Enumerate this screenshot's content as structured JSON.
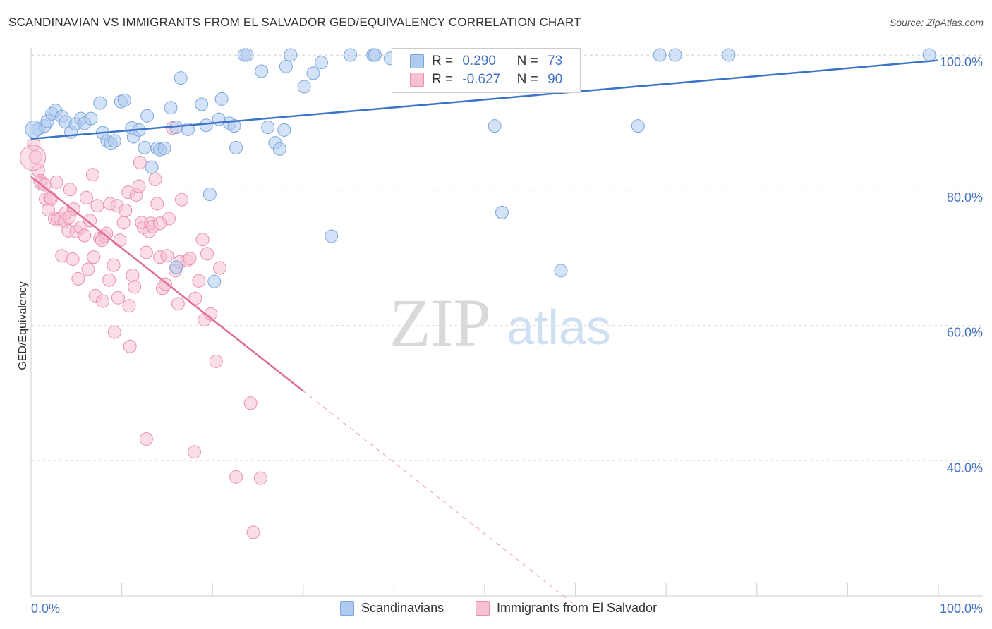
{
  "title": "SCANDINAVIAN VS IMMIGRANTS FROM EL SALVADOR GED/EQUIVALENCY CORRELATION CHART",
  "source": "Source: ZipAtlas.com",
  "watermark": {
    "zip": "ZIP",
    "atlas": "atlas"
  },
  "legend": {
    "rows": [
      {
        "r_label": "R =",
        "r_value": "0.290",
        "n_label": "N =",
        "n_value": "73"
      },
      {
        "r_label": "R =",
        "r_value": "-0.627",
        "n_label": "N =",
        "n_value": "90"
      }
    ]
  },
  "bottom_legend": [
    "Scandinavians",
    "Immigrants from El Salvador"
  ],
  "colors": {
    "blue_fill": "#aecbef",
    "blue_stroke": "#7aa6dc",
    "blue_line": "#3a74c9",
    "pink_fill": "#f7c1d3",
    "pink_stroke": "#e98fae",
    "pink_line": "#e06d97",
    "grid": "#e0e0e0",
    "tick_text": "#4472c4"
  },
  "chart_data": {
    "type": "scatter",
    "title": "SCANDINAVIAN VS IMMIGRANTS FROM EL SALVADOR GED/EQUIVALENCY CORRELATION CHART",
    "xlabel": "",
    "ylabel": "GED/Equivalency",
    "xlim": [
      0,
      100
    ],
    "ylim": [
      20,
      102
    ],
    "x_tick_labels": [
      "0.0%",
      "100.0%"
    ],
    "y_ticks": [
      40,
      60,
      80,
      100
    ],
    "y_tick_labels": [
      "40.0%",
      "60.0%",
      "80.0%",
      "100.0%"
    ],
    "grid": "horizontal dashed",
    "legend_position": "top-center",
    "series": [
      {
        "name": "Scandinavians",
        "R": 0.29,
        "N": 73,
        "trend": {
          "x": [
            0,
            100
          ],
          "y": [
            87.6,
            99.2
          ]
        },
        "points": [
          [
            0.8,
            89.0
          ],
          [
            1.5,
            89.5
          ],
          [
            1.8,
            90.2
          ],
          [
            2.3,
            91.3
          ],
          [
            2.7,
            91.8
          ],
          [
            3.4,
            90.9
          ],
          [
            3.8,
            90.1
          ],
          [
            4.4,
            88.6
          ],
          [
            4.9,
            89.8
          ],
          [
            5.5,
            90.6
          ],
          [
            5.9,
            89.9
          ],
          [
            6.6,
            90.6
          ],
          [
            7.6,
            92.9
          ],
          [
            7.9,
            88.5
          ],
          [
            8.4,
            87.3
          ],
          [
            8.8,
            86.9
          ],
          [
            9.2,
            87.3
          ],
          [
            9.9,
            93.1
          ],
          [
            10.3,
            93.3
          ],
          [
            11.1,
            89.2
          ],
          [
            11.3,
            87.9
          ],
          [
            11.9,
            88.9
          ],
          [
            12.5,
            86.3
          ],
          [
            12.8,
            91.0
          ],
          [
            13.3,
            83.4
          ],
          [
            13.9,
            86.2
          ],
          [
            14.2,
            86.0
          ],
          [
            14.7,
            86.2
          ],
          [
            15.4,
            92.2
          ],
          [
            16.0,
            89.3
          ],
          [
            16.5,
            96.6
          ],
          [
            17.3,
            89.0
          ],
          [
            18.8,
            92.7
          ],
          [
            19.3,
            89.6
          ],
          [
            19.7,
            79.4
          ],
          [
            20.7,
            90.5
          ],
          [
            21.0,
            93.5
          ],
          [
            21.9,
            89.9
          ],
          [
            22.4,
            89.5
          ],
          [
            22.6,
            86.3
          ],
          [
            23.5,
            100.0
          ],
          [
            23.8,
            100.0
          ],
          [
            25.4,
            97.6
          ],
          [
            26.1,
            89.3
          ],
          [
            26.9,
            87.0
          ],
          [
            27.4,
            86.1
          ],
          [
            27.9,
            88.9
          ],
          [
            28.1,
            98.3
          ],
          [
            28.6,
            100.0
          ],
          [
            30.1,
            95.3
          ],
          [
            31.1,
            97.3
          ],
          [
            32.0,
            98.9
          ],
          [
            33.1,
            73.2
          ],
          [
            35.2,
            100.0
          ],
          [
            37.7,
            100.0
          ],
          [
            37.9,
            100.0
          ],
          [
            39.6,
            99.5
          ],
          [
            43.3,
            100.0
          ],
          [
            44.3,
            100.0
          ],
          [
            48.2,
            100.0
          ],
          [
            50.1,
            100.0
          ],
          [
            51.8,
            100.0
          ],
          [
            51.1,
            89.5
          ],
          [
            51.9,
            76.7
          ],
          [
            56.3,
            100.0
          ],
          [
            58.4,
            68.1
          ],
          [
            66.9,
            89.5
          ],
          [
            69.3,
            100.0
          ],
          [
            71.0,
            100.0
          ],
          [
            76.9,
            100.0
          ],
          [
            99.0,
            100.0
          ],
          [
            16.0,
            68.6
          ],
          [
            20.2,
            66.5
          ]
        ]
      },
      {
        "name": "Immigrants from El Salvador",
        "R": -0.627,
        "N": 90,
        "trend": {
          "x": [
            0,
            30
          ],
          "y": [
            82.0,
            50.3
          ]
        },
        "trend_dashed": {
          "x": [
            30,
            60
          ],
          "y": [
            50.3,
            18.6
          ]
        },
        "points": [
          [
            0.3,
            86.8
          ],
          [
            0.5,
            84.9
          ],
          [
            0.8,
            82.9
          ],
          [
            1.0,
            81.4
          ],
          [
            1.1,
            81.0
          ],
          [
            1.5,
            80.8
          ],
          [
            1.6,
            78.7
          ],
          [
            1.9,
            77.1
          ],
          [
            2.1,
            78.9
          ],
          [
            2.2,
            78.7
          ],
          [
            2.6,
            75.8
          ],
          [
            2.8,
            81.2
          ],
          [
            2.9,
            75.6
          ],
          [
            3.2,
            75.8
          ],
          [
            3.4,
            70.3
          ],
          [
            3.7,
            75.4
          ],
          [
            3.8,
            76.6
          ],
          [
            4.1,
            74.0
          ],
          [
            4.3,
            80.1
          ],
          [
            4.6,
            69.8
          ],
          [
            4.7,
            77.2
          ],
          [
            5.0,
            73.9
          ],
          [
            5.2,
            66.9
          ],
          [
            5.5,
            74.5
          ],
          [
            5.9,
            73.3
          ],
          [
            6.1,
            78.9
          ],
          [
            6.3,
            68.3
          ],
          [
            6.5,
            75.5
          ],
          [
            6.8,
            82.3
          ],
          [
            6.9,
            70.1
          ],
          [
            7.1,
            64.4
          ],
          [
            7.3,
            77.7
          ],
          [
            7.6,
            72.9
          ],
          [
            7.9,
            63.6
          ],
          [
            8.1,
            73.2
          ],
          [
            8.3,
            73.6
          ],
          [
            8.6,
            66.7
          ],
          [
            8.7,
            78.0
          ],
          [
            9.1,
            68.9
          ],
          [
            9.2,
            59.0
          ],
          [
            9.5,
            77.7
          ],
          [
            9.8,
            72.6
          ],
          [
            10.2,
            75.2
          ],
          [
            10.4,
            77.0
          ],
          [
            10.7,
            79.7
          ],
          [
            10.8,
            62.9
          ],
          [
            10.9,
            56.9
          ],
          [
            11.2,
            67.4
          ],
          [
            11.4,
            65.7
          ],
          [
            11.6,
            79.3
          ],
          [
            11.9,
            80.6
          ],
          [
            12.0,
            84.1
          ],
          [
            12.2,
            75.2
          ],
          [
            12.4,
            74.5
          ],
          [
            12.7,
            70.8
          ],
          [
            13.0,
            73.9
          ],
          [
            13.2,
            75.1
          ],
          [
            13.4,
            74.6
          ],
          [
            13.7,
            81.6
          ],
          [
            13.9,
            78.0
          ],
          [
            14.2,
            70.1
          ],
          [
            14.5,
            65.5
          ],
          [
            14.8,
            66.1
          ],
          [
            15.0,
            70.3
          ],
          [
            15.2,
            75.8
          ],
          [
            15.6,
            89.2
          ],
          [
            15.9,
            68.1
          ],
          [
            16.2,
            63.2
          ],
          [
            16.4,
            69.4
          ],
          [
            16.6,
            78.6
          ],
          [
            17.2,
            69.6
          ],
          [
            17.5,
            69.9
          ],
          [
            18.1,
            64.0
          ],
          [
            18.5,
            66.6
          ],
          [
            18.9,
            72.7
          ],
          [
            19.1,
            60.8
          ],
          [
            19.4,
            70.6
          ],
          [
            19.8,
            61.7
          ],
          [
            20.4,
            54.7
          ],
          [
            20.8,
            68.5
          ],
          [
            12.7,
            43.2
          ],
          [
            18.0,
            41.3
          ],
          [
            22.6,
            37.6
          ],
          [
            24.2,
            48.5
          ],
          [
            24.5,
            29.4
          ],
          [
            25.3,
            37.4
          ],
          [
            14.2,
            75.1
          ],
          [
            9.6,
            64.1
          ],
          [
            7.8,
            72.6
          ],
          [
            4.2,
            76.0
          ]
        ]
      }
    ]
  }
}
